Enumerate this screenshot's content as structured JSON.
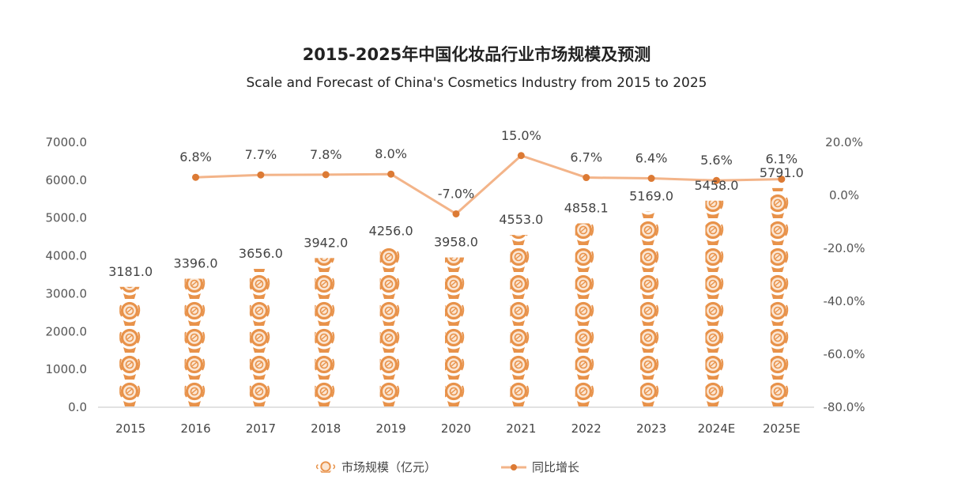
{
  "colors": {
    "accent": "#e8924a",
    "accent_light": "#fbe6d3",
    "line": "#f3b489",
    "marker": "#dc7a34",
    "axis": "#d9d9d9",
    "text": "#444444"
  },
  "chart_data": {
    "type": "bar",
    "title": "2015-2025年中国化妆品行业市场规模及预测",
    "subtitle": "Scale and Forecast of China's Cosmetics Industry from 2015 to 2025",
    "categories": [
      "2015",
      "2016",
      "2017",
      "2018",
      "2019",
      "2020",
      "2021",
      "2022",
      "2023",
      "2024E",
      "2025E"
    ],
    "series": [
      {
        "name": "市场规模（亿元）",
        "type": "bar",
        "axis": "left",
        "values": [
          3181.0,
          3396.0,
          3656.0,
          3942.0,
          4256.0,
          3958.0,
          4553.0,
          4858.1,
          5169.0,
          5458.0,
          5791.0
        ],
        "labels": [
          "3181.0",
          "3396.0",
          "3656.0",
          "3942.0",
          "4256.0",
          "3958.0",
          "4553.0",
          "4858.1",
          "5169.0",
          "5458.0",
          "5791.0"
        ]
      },
      {
        "name": "同比增长",
        "type": "line",
        "axis": "right",
        "values": [
          null,
          6.8,
          7.7,
          7.8,
          8.0,
          -7.0,
          15.0,
          6.7,
          6.4,
          5.6,
          6.1
        ],
        "labels": [
          "",
          "6.8%",
          "7.7%",
          "7.8%",
          "8.0%",
          "-7.0%",
          "15.0%",
          "6.7%",
          "6.4%",
          "5.6%",
          "6.1%"
        ]
      }
    ],
    "y_left": {
      "ylim": [
        0,
        7000
      ],
      "ticks": [
        0,
        1000,
        2000,
        3000,
        4000,
        5000,
        6000,
        7000
      ],
      "tick_labels": [
        "0.0",
        "1000.0",
        "2000.0",
        "3000.0",
        "4000.0",
        "5000.0",
        "6000.0",
        "7000.0"
      ]
    },
    "y_right": {
      "ylim": [
        -80,
        20
      ],
      "ticks": [
        -80,
        -60,
        -40,
        -20,
        0,
        20
      ],
      "tick_labels": [
        "-80.0%",
        "-60.0%",
        "-40.0%",
        "-20.0%",
        "0.0%",
        "20.0%"
      ]
    },
    "grid": false,
    "legend": {
      "position": "bottom",
      "entries": [
        "市场规模（亿元）",
        "同比增长"
      ]
    }
  }
}
